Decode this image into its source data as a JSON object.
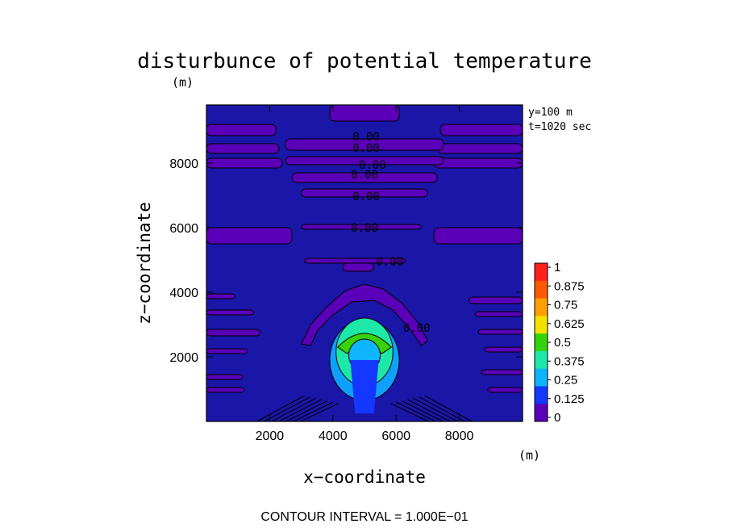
{
  "chart_data": {
    "type": "heatmap",
    "title": "disturbunce of potential temperature",
    "units": {
      "z": "(m)",
      "x": "(m)"
    },
    "xlabel": "x−coordinate",
    "ylabel": "z−coordinate",
    "xlim": [
      0,
      10000
    ],
    "ylim": [
      0,
      9800
    ],
    "xticks": [
      2000,
      4000,
      6000,
      8000
    ],
    "yticks": [
      2000,
      4000,
      6000,
      8000
    ],
    "annotations": [
      "y=100 m",
      "t=1020 sec"
    ],
    "contour_labels": [
      {
        "text": "0.00",
        "x": 5050,
        "z": 8830
      },
      {
        "text": "0.00",
        "x": 5050,
        "z": 8480
      },
      {
        "text": "0.00",
        "x": 5250,
        "z": 7950
      },
      {
        "text": "0.00",
        "x": 5000,
        "z": 7650
      },
      {
        "text": "0.00",
        "x": 5050,
        "z": 6980
      },
      {
        "text": "0.00",
        "x": 5000,
        "z": 6000
      },
      {
        "text": "0.00",
        "x": 5800,
        "z": 4950
      },
      {
        "text": "0.00",
        "x": 6650,
        "z": 2900
      }
    ],
    "colorbar": {
      "ticks": [
        "1",
        "0.875",
        "0.75",
        "0.625",
        "0.5",
        "0.375",
        "0.25",
        "0.125",
        "0"
      ],
      "colors": [
        "#ff1f1f",
        "#ff5a00",
        "#ffa000",
        "#f2e200",
        "#36d20a",
        "#1ee8a8",
        "#0fb4ff",
        "#1438ff",
        "#5a00b8"
      ]
    },
    "contour_interval": "CONTOUR INTERVAL = 1.000E−01"
  }
}
